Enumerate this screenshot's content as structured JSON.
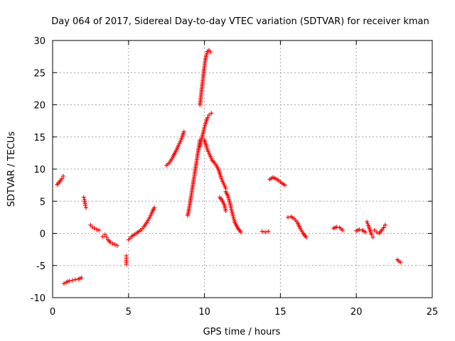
{
  "chart_data": {
    "type": "scatter",
    "title": "Day 064 of 2017, Sidereal Day-to-day VTEC variation (SDTVAR) for receiver kman",
    "xlabel": "GPS time / hours",
    "ylabel": "SDTVAR / TECUs",
    "xlim": [
      0,
      25
    ],
    "ylim": [
      -10,
      30
    ],
    "xticks": [
      0,
      5,
      10,
      15,
      20,
      25
    ],
    "yticks": [
      -10,
      -5,
      0,
      5,
      10,
      15,
      20,
      25,
      30
    ],
    "grid": true,
    "marker": "+",
    "color": "#ff0000",
    "segments": [
      {
        "x": [
          0.3,
          0.45,
          0.6,
          0.7
        ],
        "y": [
          7.6,
          8.0,
          8.5,
          8.9
        ]
      },
      {
        "x": [
          0.75,
          0.9,
          1.1,
          1.3,
          1.5,
          1.7,
          1.9
        ],
        "y": [
          -7.8,
          -7.6,
          -7.4,
          -7.3,
          -7.2,
          -7.1,
          -6.9
        ]
      },
      {
        "x": [
          2.05,
          2.1,
          2.15,
          2.2
        ],
        "y": [
          5.6,
          5.2,
          4.4,
          4.0
        ]
      },
      {
        "x": [
          2.5,
          2.6,
          2.75,
          2.9,
          3.05
        ],
        "y": [
          1.3,
          1.0,
          0.8,
          0.6,
          0.5
        ]
      },
      {
        "x": [
          3.3,
          3.45,
          3.55,
          3.65,
          3.8,
          3.95,
          4.1,
          4.25
        ],
        "y": [
          -0.5,
          -0.2,
          -0.6,
          -1.0,
          -1.4,
          -1.6,
          -1.7,
          -1.9
        ]
      },
      {
        "x": [
          4.85,
          4.85,
          4.85
        ],
        "y": [
          -3.5,
          -4.2,
          -4.8
        ]
      },
      {
        "x": [
          5.0,
          5.2,
          5.5,
          5.8,
          6.0,
          6.2,
          6.4,
          6.55,
          6.7
        ],
        "y": [
          -1.0,
          -0.5,
          0.0,
          0.5,
          1.0,
          1.7,
          2.5,
          3.3,
          4.0
        ]
      },
      {
        "x": [
          7.5,
          7.7,
          7.9,
          8.1,
          8.3,
          8.5,
          8.65
        ],
        "y": [
          10.6,
          11.0,
          11.8,
          12.7,
          13.7,
          14.8,
          15.8
        ]
      },
      {
        "x": [
          8.9,
          9.0,
          9.1,
          9.2,
          9.3,
          9.4,
          9.5,
          9.6,
          9.7
        ],
        "y": [
          2.8,
          4.0,
          5.5,
          7.0,
          8.5,
          10.0,
          11.5,
          13.0,
          14.5
        ]
      },
      {
        "x": [
          9.7,
          9.8,
          9.9,
          10.0,
          10.1,
          10.2,
          10.3,
          10.4
        ],
        "y": [
          20.0,
          22.0,
          24.0,
          26.0,
          27.5,
          28.3,
          28.5,
          28.2
        ]
      },
      {
        "x": [
          9.7,
          9.8,
          9.9,
          10.0,
          10.1,
          10.2,
          10.3,
          10.45
        ],
        "y": [
          13.5,
          14.5,
          15.5,
          16.5,
          17.3,
          18.0,
          18.4,
          18.7
        ]
      },
      {
        "x": [
          10.0,
          10.1,
          10.2,
          10.35,
          10.5,
          10.65,
          10.8,
          10.95,
          11.1,
          11.25,
          11.4
        ],
        "y": [
          14.5,
          13.8,
          13.0,
          12.2,
          11.4,
          11.0,
          10.5,
          9.8,
          8.6,
          7.8,
          7.0
        ]
      },
      {
        "x": [
          11.0,
          11.15,
          11.3,
          11.4
        ],
        "y": [
          5.6,
          5.2,
          4.5,
          3.5
        ]
      },
      {
        "x": [
          11.4,
          11.55,
          11.7,
          11.85,
          12.0,
          12.2,
          12.4
        ],
        "y": [
          6.5,
          5.8,
          4.5,
          3.0,
          1.7,
          0.8,
          0.2
        ]
      },
      {
        "x": [
          13.8,
          14.0,
          14.2
        ],
        "y": [
          0.3,
          0.2,
          0.3
        ]
      },
      {
        "x": [
          14.3,
          14.5,
          14.7,
          14.9,
          15.1,
          15.3
        ],
        "y": [
          8.4,
          8.7,
          8.5,
          8.2,
          7.8,
          7.5
        ]
      },
      {
        "x": [
          15.5,
          15.7,
          15.9,
          16.1,
          16.3,
          16.5,
          16.7
        ],
        "y": [
          2.5,
          2.6,
          2.3,
          1.8,
          0.8,
          0.0,
          -0.6
        ]
      },
      {
        "x": [
          18.5,
          18.7,
          18.9,
          19.1
        ],
        "y": [
          0.8,
          1.0,
          0.9,
          0.5
        ]
      },
      {
        "x": [
          20.0,
          20.2,
          20.4,
          20.6
        ],
        "y": [
          0.4,
          0.6,
          0.5,
          0.2
        ]
      },
      {
        "x": [
          20.7,
          20.8,
          20.9,
          21.0,
          21.1
        ],
        "y": [
          1.8,
          1.2,
          0.5,
          -0.2,
          -0.6
        ]
      },
      {
        "x": [
          21.2,
          21.35,
          21.5,
          21.65,
          21.8,
          21.9
        ],
        "y": [
          0.5,
          0.2,
          0.0,
          0.4,
          0.9,
          1.3
        ]
      },
      {
        "x": [
          22.7,
          22.8,
          22.9
        ],
        "y": [
          -4.1,
          -4.3,
          -4.5
        ]
      }
    ]
  }
}
